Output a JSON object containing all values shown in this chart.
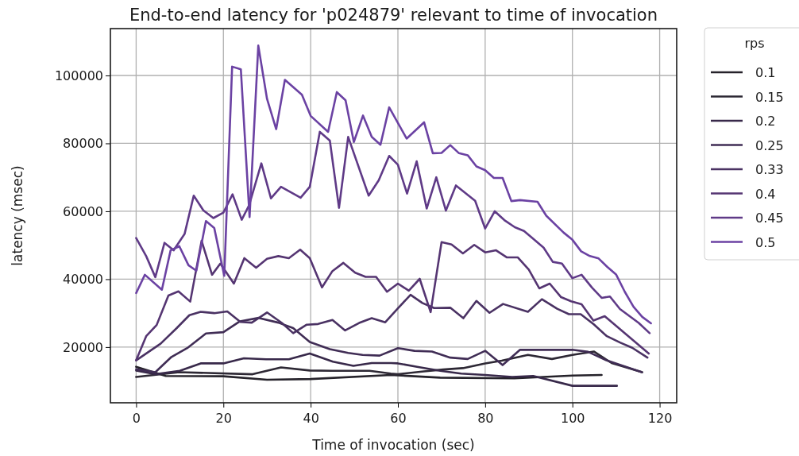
{
  "chart_data": {
    "type": "line",
    "title": "End-to-end latency for 'p024879' relevant to time of invocation",
    "xlabel": "Time of invocation (sec)",
    "ylabel": "latency (msec)",
    "legend_title": "rps",
    "legend": "top right",
    "grid": true,
    "line_style": "solid",
    "xlim": [
      -5.9,
      123.9
    ],
    "ylim": [
      3600,
      113800
    ],
    "xticks": [
      0,
      20,
      40,
      60,
      80,
      100,
      120
    ],
    "yticks": [
      20000,
      40000,
      60000,
      80000,
      100000
    ],
    "series": [
      {
        "name": "0.1",
        "color": "#25222a",
        "x": [
          0,
          6.8,
          20,
          30,
          40,
          58.4,
          69.7,
          86.7,
          100,
          106.7
        ],
        "values": [
          14200,
          11500,
          11400,
          10400,
          10600,
          11800,
          11000,
          10800,
          11600,
          11800
        ]
      },
      {
        "name": "0.15",
        "color": "#2d2834",
        "x": [
          0,
          9.9,
          26.7,
          33.2,
          39.8,
          45,
          53.5,
          58.4,
          60,
          65.5,
          70.4,
          74.9,
          80,
          83.8,
          89.8,
          95.3,
          100,
          104.9,
          109,
          116
        ],
        "values": [
          11200,
          12600,
          12000,
          14000,
          13100,
          13000,
          13000,
          12200,
          12000,
          12800,
          13400,
          13800,
          15200,
          16000,
          17700,
          16500,
          17700,
          18700,
          15300,
          12600
        ]
      },
      {
        "name": "0.2",
        "color": "#38294a",
        "x": [
          0,
          4.4,
          10,
          14.8,
          20,
          24.7,
          29.8,
          35,
          39.8,
          45.1,
          49.8,
          54,
          58.4,
          60,
          64.4,
          69.7,
          74.5,
          80,
          86.2,
          91,
          100,
          110.2
        ],
        "values": [
          13100,
          12000,
          13000,
          15200,
          15200,
          16700,
          16400,
          16400,
          18100,
          15700,
          14500,
          15300,
          15300,
          15200,
          14200,
          13000,
          12200,
          11800,
          11200,
          11500,
          8600,
          8600
        ]
      },
      {
        "name": "0.25",
        "color": "#402d55",
        "x": [
          0,
          4.4,
          8.1,
          11.7,
          16,
          20,
          23.8,
          28.1,
          32.6,
          36,
          39.8,
          44.4,
          48.6,
          51.9,
          55.8,
          60,
          63.8,
          67.8,
          72,
          76,
          80,
          84,
          88,
          100,
          103.6,
          107.8,
          115.9
        ],
        "values": [
          13500,
          12600,
          17100,
          19700,
          24000,
          24400,
          27600,
          28600,
          27200,
          25600,
          21500,
          19400,
          18300,
          17700,
          17500,
          19700,
          18900,
          18700,
          16900,
          16500,
          18900,
          14700,
          19200,
          19200,
          18600,
          16100,
          12600
        ]
      },
      {
        "name": "0.33",
        "color": "#4a3263",
        "x": [
          0,
          5.6,
          9.3,
          12.2,
          14.8,
          17.9,
          20.9,
          23.9,
          26.5,
          30,
          33.4,
          36,
          39.1,
          41.7,
          45,
          47.9,
          51.1,
          54,
          57.1,
          60,
          62.9,
          65.6,
          68.3,
          72,
          75,
          78,
          81,
          84.1,
          89.8,
          93,
          96.5,
          99.2,
          101.9,
          104.9,
          107.8,
          111,
          113.7,
          117.2
        ],
        "values": [
          16100,
          21000,
          25600,
          29400,
          30400,
          30000,
          30500,
          27400,
          27200,
          30200,
          27100,
          24100,
          26600,
          26800,
          28000,
          24900,
          27100,
          28500,
          27300,
          31400,
          35400,
          33000,
          31500,
          31600,
          28500,
          33600,
          30100,
          32700,
          30400,
          34100,
          31300,
          29700,
          29700,
          26700,
          23300,
          21300,
          19800,
          16900
        ]
      },
      {
        "name": "0.4",
        "color": "#553572",
        "x": [
          0,
          2.3,
          4.7,
          7.4,
          9.7,
          12.4,
          15,
          17.4,
          19.3,
          22.4,
          24.8,
          27.5,
          30,
          32.6,
          35,
          37.6,
          39.8,
          42.6,
          45,
          47.5,
          50.2,
          52.6,
          55,
          57.5,
          60,
          62.5,
          65,
          67.5,
          70,
          72.3,
          74.9,
          77.5,
          80,
          82.5,
          85,
          87.5,
          90,
          92.4,
          94.8,
          97.4,
          99.7,
          102.1,
          104.8,
          107.4,
          117.5
        ],
        "values": [
          16100,
          23200,
          26500,
          35200,
          36400,
          33400,
          51300,
          41300,
          44600,
          38700,
          46200,
          43400,
          46000,
          46800,
          46200,
          48700,
          46200,
          37600,
          42400,
          44800,
          41900,
          40700,
          40700,
          36300,
          38700,
          36600,
          40100,
          30300,
          50900,
          50200,
          47600,
          50100,
          47900,
          48500,
          46400,
          46400,
          42800,
          37300,
          38700,
          34700,
          33500,
          32600,
          27800,
          29100,
          18100
        ]
      },
      {
        "name": "0.45",
        "color": "#5f3a87",
        "x": [
          0,
          2.3,
          4.4,
          6.5,
          8.6,
          11.1,
          13.2,
          15.4,
          17.7,
          20,
          22.1,
          24.2,
          25.9,
          28.7,
          30.9,
          33.2,
          37.7,
          39.8,
          42.1,
          44.4,
          46.5,
          48.6,
          53.3,
          55.6,
          58,
          60,
          62.1,
          64.3,
          66.6,
          68.8,
          71,
          73.3,
          77.7,
          80,
          82.2,
          84.4,
          86.8,
          88.9,
          91,
          93.4,
          95.5,
          97.6,
          100,
          102.1,
          104.5,
          106.7,
          108.6,
          110.9,
          115.2,
          117.7
        ],
        "values": [
          52100,
          46800,
          40600,
          50700,
          48500,
          53300,
          64600,
          60300,
          58000,
          59600,
          65000,
          57500,
          61800,
          74100,
          63800,
          67200,
          64000,
          67200,
          83400,
          80800,
          61000,
          81900,
          64600,
          69100,
          76300,
          73700,
          65200,
          74700,
          60800,
          70000,
          60200,
          67600,
          63100,
          54900,
          60000,
          57400,
          55300,
          54200,
          51900,
          49300,
          45100,
          44600,
          40300,
          41300,
          37500,
          34500,
          34900,
          31200,
          27100,
          24100
        ]
      },
      {
        "name": "0.5",
        "color": "#6b42a3",
        "x": [
          0,
          2,
          5.9,
          7.9,
          9.9,
          12,
          13.8,
          16,
          17.9,
          20.2,
          22,
          24,
          26,
          28,
          30,
          32.1,
          34.1,
          38,
          40,
          44,
          46,
          48,
          49.9,
          52,
          54,
          56,
          58,
          62,
          66,
          68,
          70,
          72,
          74,
          76,
          78,
          80,
          82,
          84,
          86,
          88,
          92,
          94,
          98,
          100,
          102,
          104,
          106,
          108,
          110,
          112,
          114,
          116,
          118
        ],
        "values": [
          35900,
          41300,
          36900,
          48500,
          49700,
          44100,
          42500,
          57100,
          55100,
          41000,
          102600,
          101800,
          58300,
          108800,
          93100,
          84200,
          98700,
          94300,
          88100,
          83400,
          95100,
          92700,
          80400,
          88200,
          81900,
          79600,
          90600,
          81400,
          86200,
          77100,
          77200,
          79500,
          77100,
          76500,
          73200,
          72100,
          69800,
          69800,
          63000,
          63300,
          62800,
          58700,
          53700,
          51600,
          48200,
          46800,
          46100,
          43600,
          41400,
          36300,
          31900,
          28900,
          27000
        ]
      }
    ]
  }
}
